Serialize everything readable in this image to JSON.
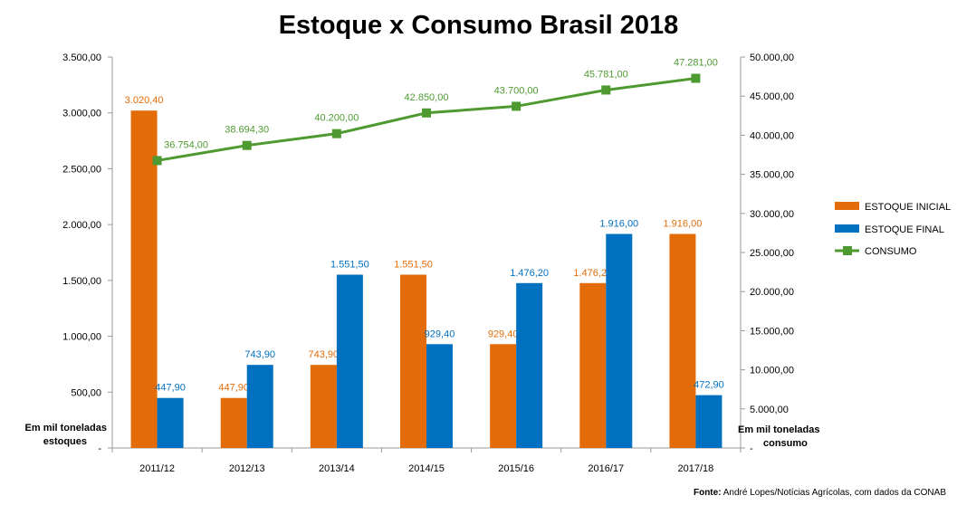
{
  "chart_data": {
    "type": "bar+line",
    "title": "Estoque x Consumo Brasil 2018",
    "categories": [
      "2011/12",
      "2012/13",
      "2013/14",
      "2014/15",
      "2015/16",
      "2016/17",
      "2017/18"
    ],
    "series": [
      {
        "name": "ESTOQUE INICIAL",
        "type": "bar",
        "axis": "left",
        "color": "#E36C09",
        "values": [
          3020.4,
          447.9,
          743.9,
          1551.5,
          929.4,
          1476.2,
          1916.0
        ],
        "labels": [
          "3.020,40",
          "447,90",
          "743,90",
          "1.551,50",
          "929,40",
          "1.476,20",
          "1.916,00"
        ]
      },
      {
        "name": "ESTOQUE FINAL",
        "type": "bar",
        "axis": "left",
        "color": "#0070C0",
        "values": [
          447.9,
          743.9,
          1551.5,
          929.4,
          1476.2,
          1916.0,
          472.9
        ],
        "labels": [
          "447,90",
          "743,90",
          "1.551,50",
          "929,40",
          "1.476,20",
          "1.916,00",
          "472,90"
        ]
      },
      {
        "name": "CONSUMO",
        "type": "line",
        "axis": "right",
        "color": "#4E9A31",
        "values": [
          36754.0,
          38694.3,
          40200.0,
          42850.0,
          43700.0,
          45781.0,
          47281.0
        ],
        "labels": [
          "36.754,00",
          "38.694,30",
          "40.200,00",
          "42.850,00",
          "43.700,00",
          "45.781,00",
          "47.281,00"
        ]
      }
    ],
    "left_axis": {
      "ylim": [
        0,
        3500
      ],
      "ticks": [
        0,
        500,
        1000,
        1500,
        2000,
        2500,
        3000,
        3500
      ],
      "tick_labels": [
        "-",
        "500,00",
        "1.000,00",
        "1.500,00",
        "2.000,00",
        "2.500,00",
        "3.000,00",
        "3.500,00"
      ],
      "label": "Em mil toneladas estoques"
    },
    "right_axis": {
      "ylim": [
        0,
        50000
      ],
      "ticks": [
        0,
        5000,
        10000,
        15000,
        20000,
        25000,
        30000,
        35000,
        40000,
        45000,
        50000
      ],
      "tick_labels": [
        "-",
        "5.000,00",
        "10.000,00",
        "15.000,00",
        "20.000,00",
        "25.000,00",
        "30.000,00",
        "35.000,00",
        "40.000,00",
        "45.000,00",
        "50.000,00"
      ],
      "label": "Em mil toneladas consumo"
    },
    "legend_position": "right",
    "grid": false
  },
  "left_unit_line1": "Em mil toneladas",
  "left_unit_line2": "estoques",
  "right_unit_line1": "Em mil toneladas",
  "right_unit_line2": "consumo",
  "source_prefix": "Fonte:",
  "source_text": " André Lopes/Notícias Agrícolas, com dados da CONAB"
}
